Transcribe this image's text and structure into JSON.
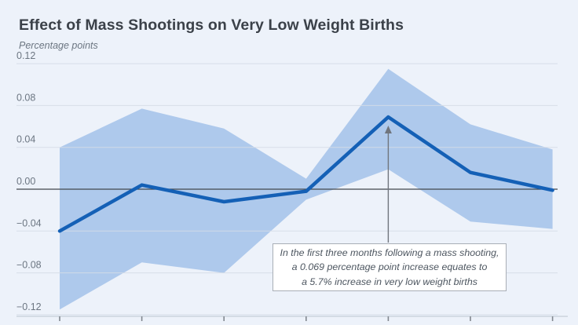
{
  "chart": {
    "title": "Effect of Mass Shootings on Very Low Weight Births",
    "unit_label": "Percentage points",
    "annotation": {
      "line1": "In the first three months following a mass shooting,",
      "line2": "a 0.069 percentage point increase equates to",
      "line3": "a 5.7% increase in very low weight births"
    }
  },
  "chart_data": {
    "type": "line",
    "title": "Effect of Mass Shootings on Very Low Weight Births",
    "ylabel": "Percentage points",
    "xlabel": "",
    "x_axis": {
      "tick_count": 7,
      "labels_visible": false
    },
    "yticks": [
      0.12,
      0.08,
      0.04,
      0.0,
      -0.04,
      -0.08,
      -0.12
    ],
    "ytick_labels": [
      "0.12",
      "0.08",
      "0.04",
      "0.00",
      "−0.04",
      "−0.08",
      "−0.12"
    ],
    "ylim": [
      -0.13,
      0.13
    ],
    "grid": true,
    "legend": false,
    "line": {
      "values": [
        -0.04,
        0.004,
        -0.012,
        -0.002,
        0.069,
        0.016,
        -0.001
      ]
    },
    "band": {
      "upper": [
        0.04,
        0.077,
        0.058,
        0.01,
        0.115,
        0.062,
        0.038
      ],
      "lower": [
        -0.115,
        -0.07,
        -0.08,
        -0.01,
        0.019,
        -0.031,
        -0.038
      ]
    },
    "highlight_point": {
      "x_index": 4,
      "value": 0.069
    },
    "annotation_text": "In the first three months following a mass shooting, a 0.069 percentage point increase equates to a 5.7% increase in very low weight births"
  },
  "colors": {
    "background": "#edf2fa",
    "band": "#aec9ec",
    "line": "#1460b6",
    "title_text": "#3b4149",
    "muted_text": "#6c7682",
    "gridline": "#d5dce7",
    "zero_line": "#42474e",
    "axis_line": "#c6cdd8",
    "tick": "#81878f",
    "arrow": "#70757d",
    "annotation_border": "#a9aeb6",
    "annotation_bg": "#ffffff",
    "annotation_text_color": "#4d5660"
  }
}
